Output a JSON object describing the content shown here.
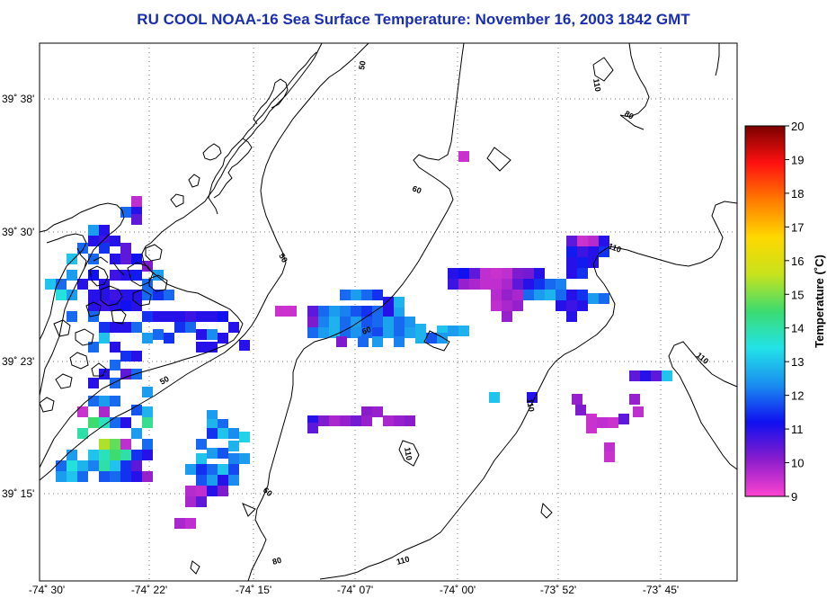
{
  "title": "RU COOL  NOAA-16  Sea Surface Temperature:  November 16, 2003 1842 GMT",
  "map": {
    "lat_labels": [
      "39˚ 38'",
      "39˚ 30'",
      "39˚ 23'",
      "39˚ 15'"
    ],
    "lon_labels": [
      "-74˚ 30'",
      "-74˚ 22'",
      "-74˚ 15'",
      "-74˚ 07'",
      "-74˚ 00'",
      "-73˚ 52'",
      "-73˚ 45'"
    ],
    "contour_labels": [
      "50",
      "50",
      "50",
      "60",
      "60",
      "60",
      "80",
      "80",
      "110",
      "110",
      "110",
      "110",
      "110",
      "110"
    ]
  },
  "colorbar": {
    "title": "Temperature (˚C)",
    "ticks": [
      "20",
      "19",
      "18",
      "17",
      "16",
      "15",
      "14",
      "13",
      "12",
      "11",
      "10",
      "9"
    ],
    "min": 9,
    "max": 20,
    "stops": [
      "#ff44d0",
      "#8a1ccc",
      "#1010f0",
      "#1a8cf0",
      "#22e2e8",
      "#3cdc70",
      "#c8e21c",
      "#ffd800",
      "#ff7a00",
      "#ff1010",
      "#7a0000"
    ]
  },
  "sst_pixels": [
    [
      146,
      218,
      9.6
    ],
    [
      146,
      230,
      11
    ],
    [
      146,
      238,
      10.5
    ],
    [
      134,
      230,
      12
    ],
    [
      98,
      250,
      12.5
    ],
    [
      110,
      250,
      11
    ],
    [
      98,
      262,
      11
    ],
    [
      110,
      262,
      10.8
    ],
    [
      86,
      270,
      12
    ],
    [
      110,
      270,
      11.5
    ],
    [
      122,
      262,
      11
    ],
    [
      134,
      270,
      10.5
    ],
    [
      74,
      282,
      13
    ],
    [
      98,
      282,
      12
    ],
    [
      122,
      282,
      11
    ],
    [
      134,
      282,
      10.5
    ],
    [
      146,
      282,
      11.2
    ],
    [
      158,
      290,
      10.2
    ],
    [
      50,
      310,
      13
    ],
    [
      62,
      310,
      12
    ],
    [
      74,
      300,
      12.5
    ],
    [
      86,
      310,
      11
    ],
    [
      98,
      300,
      11.2
    ],
    [
      110,
      310,
      11
    ],
    [
      122,
      300,
      10.8
    ],
    [
      134,
      300,
      11
    ],
    [
      146,
      300,
      11.3
    ],
    [
      158,
      310,
      12
    ],
    [
      170,
      300,
      12.5
    ],
    [
      62,
      322,
      13.5
    ],
    [
      74,
      322,
      12.5
    ],
    [
      98,
      322,
      11
    ],
    [
      110,
      322,
      11
    ],
    [
      122,
      322,
      10.8
    ],
    [
      134,
      322,
      11
    ],
    [
      146,
      322,
      11
    ],
    [
      158,
      322,
      12
    ],
    [
      170,
      322,
      11.5
    ],
    [
      182,
      322,
      12
    ],
    [
      74,
      346,
      12
    ],
    [
      98,
      334,
      11
    ],
    [
      110,
      334,
      10.8
    ],
    [
      122,
      334,
      11
    ],
    [
      134,
      334,
      11.2
    ],
    [
      146,
      334,
      11
    ],
    [
      158,
      346,
      11.5
    ],
    [
      170,
      346,
      11
    ],
    [
      182,
      346,
      11
    ],
    [
      194,
      346,
      11
    ],
    [
      206,
      346,
      10.8
    ],
    [
      218,
      346,
      11
    ],
    [
      230,
      346,
      11
    ],
    [
      242,
      346,
      11.2
    ],
    [
      254,
      358,
      11
    ],
    [
      194,
      358,
      11.5
    ],
    [
      206,
      358,
      12
    ],
    [
      218,
      366,
      11
    ],
    [
      230,
      366,
      12.3
    ],
    [
      242,
      370,
      11
    ],
    [
      266,
      378,
      11
    ],
    [
      218,
      380,
      11
    ],
    [
      230,
      380,
      11
    ],
    [
      98,
      346,
      12
    ],
    [
      110,
      358,
      11.5
    ],
    [
      122,
      358,
      11
    ],
    [
      134,
      358,
      11
    ],
    [
      146,
      358,
      12
    ],
    [
      158,
      370,
      12.5
    ],
    [
      170,
      366,
      12
    ],
    [
      182,
      370,
      11.5
    ],
    [
      110,
      370,
      13
    ],
    [
      122,
      380,
      11
    ],
    [
      98,
      380,
      12
    ],
    [
      134,
      390,
      11.5
    ],
    [
      146,
      390,
      11
    ],
    [
      122,
      400,
      12
    ],
    [
      110,
      410,
      11
    ],
    [
      98,
      420,
      11
    ],
    [
      122,
      420,
      12
    ],
    [
      146,
      410,
      12
    ],
    [
      134,
      410,
      10.5
    ],
    [
      158,
      430,
      12.5
    ],
    [
      98,
      440,
      12
    ],
    [
      110,
      440,
      12.5
    ],
    [
      122,
      440,
      12
    ],
    [
      146,
      450,
      11.8
    ],
    [
      86,
      452,
      9.5
    ],
    [
      110,
      452,
      9.8
    ],
    [
      158,
      452,
      12.8
    ],
    [
      98,
      464,
      14.5
    ],
    [
      110,
      464,
      13.8
    ],
    [
      122,
      464,
      12
    ],
    [
      134,
      464,
      11
    ],
    [
      158,
      464,
      14.2
    ],
    [
      86,
      476,
      14
    ],
    [
      110,
      488,
      15.4
    ],
    [
      122,
      488,
      14.8
    ],
    [
      146,
      476,
      12.5
    ],
    [
      158,
      488,
      12
    ],
    [
      134,
      488,
      9.6
    ],
    [
      74,
      500,
      12.5
    ],
    [
      98,
      500,
      13
    ],
    [
      110,
      500,
      13.8
    ],
    [
      122,
      500,
      14.5
    ],
    [
      134,
      500,
      14
    ],
    [
      146,
      500,
      11.5
    ],
    [
      158,
      500,
      11
    ],
    [
      62,
      512,
      12
    ],
    [
      74,
      512,
      13.5
    ],
    [
      86,
      512,
      12.8
    ],
    [
      98,
      512,
      12.2
    ],
    [
      110,
      512,
      14
    ],
    [
      122,
      512,
      13
    ],
    [
      134,
      512,
      11.5
    ],
    [
      146,
      512,
      10.5
    ],
    [
      62,
      524,
      12.5
    ],
    [
      74,
      524,
      13
    ],
    [
      86,
      524,
      12
    ],
    [
      110,
      524,
      11.8
    ],
    [
      122,
      524,
      12
    ],
    [
      134,
      524,
      11.5
    ],
    [
      158,
      524,
      10
    ],
    [
      146,
      524,
      11
    ],
    [
      230,
      456,
      12.5
    ],
    [
      230,
      466,
      12.8
    ],
    [
      242,
      466,
      12
    ],
    [
      242,
      476,
      13
    ],
    [
      230,
      476,
      11.5
    ],
    [
      254,
      476,
      12.3
    ],
    [
      266,
      480,
      13.2
    ],
    [
      218,
      488,
      12
    ],
    [
      254,
      490,
      12.8
    ],
    [
      242,
      498,
      11.8
    ],
    [
      230,
      498,
      12.5
    ],
    [
      218,
      504,
      13
    ],
    [
      254,
      504,
      12.2
    ],
    [
      266,
      504,
      12.5
    ],
    [
      206,
      516,
      12.5
    ],
    [
      218,
      516,
      11.5
    ],
    [
      230,
      516,
      12
    ],
    [
      254,
      516,
      11.7
    ],
    [
      242,
      516,
      13
    ],
    [
      218,
      528,
      11.8
    ],
    [
      230,
      528,
      12.5
    ],
    [
      254,
      528,
      12.3
    ],
    [
      242,
      528,
      11
    ],
    [
      206,
      540,
      9.7
    ],
    [
      218,
      540,
      9.6
    ],
    [
      230,
      540,
      11
    ],
    [
      242,
      540,
      10.2
    ],
    [
      206,
      552,
      9.8
    ],
    [
      218,
      552,
      10.5
    ],
    [
      194,
      576,
      9.8
    ],
    [
      206,
      576,
      9.6
    ],
    [
      306,
      340,
      9.5
    ],
    [
      318,
      340,
      9.5
    ],
    [
      342,
      340,
      10.5
    ],
    [
      354,
      340,
      12
    ],
    [
      366,
      340,
      12.5
    ],
    [
      378,
      340,
      12.2
    ],
    [
      390,
      340,
      11.8
    ],
    [
      402,
      340,
      11.5
    ],
    [
      414,
      340,
      12
    ],
    [
      426,
      340,
      11
    ],
    [
      438,
      340,
      12.6
    ],
    [
      378,
      322,
      12
    ],
    [
      390,
      322,
      12.5
    ],
    [
      402,
      322,
      12
    ],
    [
      414,
      322,
      11.5
    ],
    [
      426,
      330,
      11
    ],
    [
      438,
      330,
      12.8
    ],
    [
      342,
      352,
      10.2
    ],
    [
      354,
      352,
      12.2
    ],
    [
      366,
      352,
      12.8
    ],
    [
      378,
      352,
      12
    ],
    [
      390,
      352,
      12.5
    ],
    [
      402,
      352,
      11.8
    ],
    [
      414,
      352,
      12
    ],
    [
      426,
      352,
      12.6
    ],
    [
      438,
      352,
      12
    ],
    [
      450,
      352,
      12.4
    ],
    [
      462,
      360,
      12.8
    ],
    [
      342,
      364,
      12
    ],
    [
      354,
      364,
      12.5
    ],
    [
      366,
      364,
      12.8
    ],
    [
      378,
      364,
      12
    ],
    [
      390,
      364,
      12.4
    ],
    [
      402,
      364,
      12
    ],
    [
      414,
      364,
      11.7
    ],
    [
      426,
      364,
      12.6
    ],
    [
      438,
      364,
      12
    ],
    [
      450,
      364,
      12.6
    ],
    [
      462,
      370,
      12.8
    ],
    [
      474,
      370,
      11.8
    ],
    [
      486,
      362,
      13
    ],
    [
      498,
      362,
      12.5
    ],
    [
      510,
      362,
      12.8
    ],
    [
      486,
      370,
      12.5
    ],
    [
      374,
      374,
      10.2
    ],
    [
      398,
      374,
      12
    ],
    [
      414,
      374,
      12.5
    ],
    [
      438,
      374,
      12.2
    ],
    [
      342,
      462,
      11
    ],
    [
      354,
      462,
      10.2
    ],
    [
      366,
      462,
      9.8
    ],
    [
      378,
      462,
      10
    ],
    [
      390,
      462,
      10.3
    ],
    [
      402,
      452,
      10.1
    ],
    [
      414,
      452,
      10
    ],
    [
      402,
      462,
      10
    ],
    [
      426,
      462,
      9.8
    ],
    [
      438,
      462,
      10
    ],
    [
      450,
      462,
      10.1
    ],
    [
      342,
      470,
      10.5
    ],
    [
      510,
      168,
      9.5
    ],
    [
      498,
      298,
      11
    ],
    [
      510,
      298,
      11.2
    ],
    [
      522,
      298,
      10.5
    ],
    [
      534,
      298,
      9.6
    ],
    [
      546,
      298,
      9.5
    ],
    [
      558,
      298,
      9.6
    ],
    [
      570,
      298,
      10.2
    ],
    [
      582,
      298,
      10.3
    ],
    [
      594,
      298,
      11
    ],
    [
      498,
      310,
      10.8
    ],
    [
      510,
      310,
      10
    ],
    [
      522,
      310,
      9.8
    ],
    [
      534,
      310,
      9.6
    ],
    [
      546,
      310,
      9.6
    ],
    [
      558,
      310,
      9.8
    ],
    [
      570,
      310,
      10.5
    ],
    [
      582,
      310,
      11
    ],
    [
      594,
      310,
      11.5
    ],
    [
      606,
      310,
      12
    ],
    [
      618,
      310,
      12.2
    ],
    [
      546,
      322,
      9.7
    ],
    [
      558,
      322,
      10
    ],
    [
      570,
      322,
      9.8
    ],
    [
      582,
      322,
      12
    ],
    [
      594,
      322,
      12.5
    ],
    [
      606,
      322,
      12.8
    ],
    [
      618,
      322,
      12
    ],
    [
      630,
      322,
      11
    ],
    [
      642,
      322,
      11.5
    ],
    [
      654,
      326,
      12.5
    ],
    [
      666,
      326,
      12
    ],
    [
      546,
      334,
      9.6
    ],
    [
      558,
      334,
      9.8
    ],
    [
      570,
      334,
      10
    ],
    [
      618,
      334,
      11
    ],
    [
      630,
      334,
      10.8
    ],
    [
      642,
      334,
      11
    ],
    [
      558,
      346,
      10
    ],
    [
      630,
      346,
      11
    ],
    [
      630,
      262,
      10.5
    ],
    [
      642,
      262,
      9.5
    ],
    [
      654,
      262,
      9.7
    ],
    [
      666,
      262,
      11
    ],
    [
      630,
      274,
      11.3
    ],
    [
      642,
      274,
      10.8
    ],
    [
      654,
      274,
      11
    ],
    [
      666,
      274,
      11.5
    ],
    [
      630,
      286,
      11
    ],
    [
      642,
      286,
      11.3
    ],
    [
      654,
      286,
      11
    ],
    [
      630,
      298,
      11
    ],
    [
      642,
      298,
      11.5
    ],
    [
      544,
      436,
      13
    ],
    [
      586,
      436,
      11
    ],
    [
      700,
      412,
      10.5
    ],
    [
      712,
      412,
      11
    ],
    [
      724,
      412,
      10.5
    ],
    [
      736,
      412,
      13
    ],
    [
      636,
      438,
      10
    ],
    [
      640,
      450,
      10.2
    ],
    [
      652,
      460,
      9.5
    ],
    [
      664,
      464,
      9.6
    ],
    [
      676,
      464,
      9.5
    ],
    [
      688,
      460,
      10.5
    ],
    [
      700,
      438,
      10
    ],
    [
      652,
      470,
      9.5
    ],
    [
      672,
      492,
      9.6
    ],
    [
      672,
      502,
      9.5
    ],
    [
      704,
      452,
      9.6
    ]
  ]
}
